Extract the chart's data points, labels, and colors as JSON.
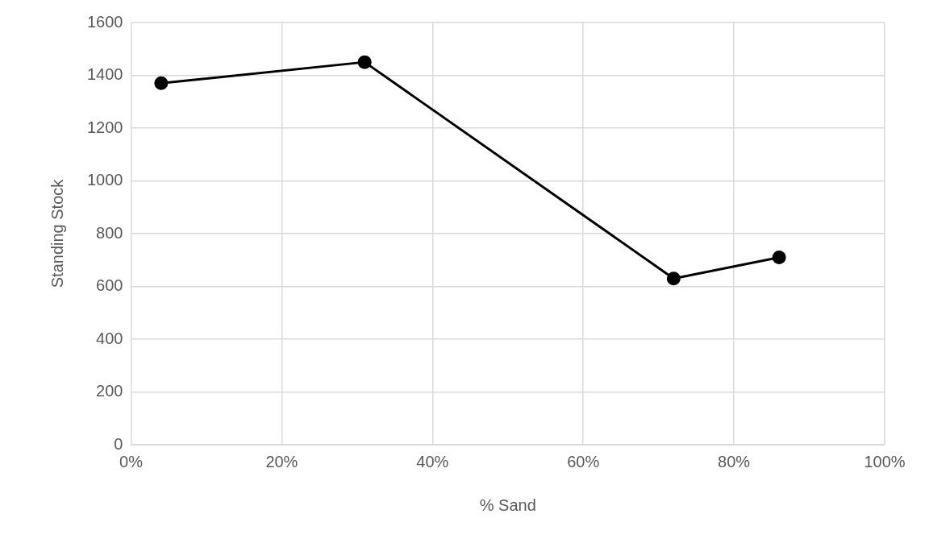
{
  "chart_data": {
    "type": "line",
    "xlabel": "% Sand",
    "ylabel": "Standing Stock",
    "x": [
      4,
      31,
      72,
      86
    ],
    "series": [
      {
        "color": "#000000",
        "values": [
          1370,
          1450,
          630,
          710
        ]
      }
    ],
    "xlim": [
      0,
      100
    ],
    "xticks": [
      {
        "value": 0,
        "label": "0%"
      },
      {
        "value": 20,
        "label": "20%"
      },
      {
        "value": 40,
        "label": "40%"
      },
      {
        "value": 60,
        "label": "60%"
      },
      {
        "value": 80,
        "label": "80%"
      },
      {
        "value": 100,
        "label": "100%"
      }
    ],
    "ylim": [
      0,
      1600
    ],
    "yticks": [
      0,
      200,
      400,
      600,
      800,
      1000,
      1200,
      1400,
      1600
    ],
    "grid": true,
    "legend": false,
    "marker": "circle",
    "line_style": "solid"
  }
}
